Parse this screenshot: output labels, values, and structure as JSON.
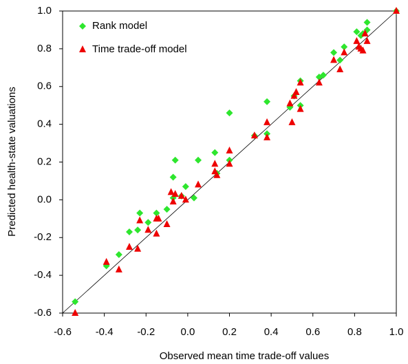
{
  "chart_data": {
    "type": "scatter",
    "xlabel": "Observed mean time trade-off values",
    "ylabel": "Predicted health-state valuations",
    "xlim": [
      -0.6,
      1.0
    ],
    "ylim": [
      -0.6,
      1.0
    ],
    "xticks": [
      -0.6,
      -0.4,
      -0.2,
      {
        "value": 0,
        "label": "0.0"
      },
      0.2,
      0.4,
      0.6,
      0.8,
      {
        "value": 1,
        "label": "1.0"
      }
    ],
    "yticks": [
      -0.6,
      -0.4,
      -0.2,
      {
        "value": 0,
        "label": "0.0"
      },
      0.2,
      0.4,
      0.6,
      0.8,
      {
        "value": 1,
        "label": "1.0"
      }
    ],
    "legend": "upper left",
    "series": [
      {
        "name": "Rank model",
        "color": "#2ee62e",
        "marker": "diamond",
        "x": [
          -0.54,
          -0.39,
          -0.33,
          -0.28,
          -0.24,
          -0.23,
          -0.19,
          -0.15,
          -0.1,
          -0.07,
          -0.06,
          -0.07,
          -0.03,
          -0.01,
          0.03,
          0.05,
          0.13,
          0.14,
          0.2,
          0.2,
          0.32,
          0.38,
          0.38,
          0.49,
          0.51,
          0.54,
          0.54,
          0.63,
          0.65,
          0.7,
          0.73,
          0.75,
          0.81,
          0.83,
          0.84,
          0.86,
          0.86,
          1.0
        ],
        "values": [
          -0.54,
          -0.35,
          -0.29,
          -0.17,
          -0.16,
          -0.07,
          -0.12,
          -0.07,
          -0.05,
          0.12,
          0.21,
          0.01,
          0.02,
          0.07,
          0.01,
          0.21,
          0.25,
          0.14,
          0.46,
          0.21,
          0.34,
          0.52,
          0.35,
          0.49,
          0.55,
          0.5,
          0.63,
          0.65,
          0.66,
          0.78,
          0.74,
          0.81,
          0.89,
          0.87,
          0.88,
          0.94,
          0.9,
          1.0
        ]
      },
      {
        "name": "Time trade-off model",
        "color": "#ee0000",
        "marker": "triangle",
        "x": [
          -0.54,
          -0.39,
          -0.33,
          -0.28,
          -0.24,
          -0.23,
          -0.19,
          -0.15,
          -0.15,
          -0.14,
          -0.1,
          -0.08,
          -0.06,
          -0.07,
          -0.03,
          -0.01,
          0.05,
          0.13,
          0.13,
          0.14,
          0.2,
          0.2,
          0.32,
          0.38,
          0.38,
          0.49,
          0.5,
          0.51,
          0.52,
          0.54,
          0.54,
          0.63,
          0.7,
          0.73,
          0.75,
          0.81,
          0.82,
          0.83,
          0.84,
          0.85,
          0.86,
          1.0
        ],
        "values": [
          -0.6,
          -0.33,
          -0.37,
          -0.25,
          -0.26,
          -0.11,
          -0.16,
          -0.1,
          -0.18,
          -0.1,
          -0.13,
          0.04,
          0.03,
          -0.01,
          0.02,
          0.0,
          0.08,
          0.19,
          0.15,
          0.13,
          0.26,
          0.19,
          0.34,
          0.33,
          0.41,
          0.51,
          0.41,
          0.55,
          0.57,
          0.48,
          0.62,
          0.62,
          0.74,
          0.69,
          0.78,
          0.84,
          0.81,
          0.8,
          0.79,
          0.88,
          0.84,
          1.0
        ]
      }
    ]
  }
}
